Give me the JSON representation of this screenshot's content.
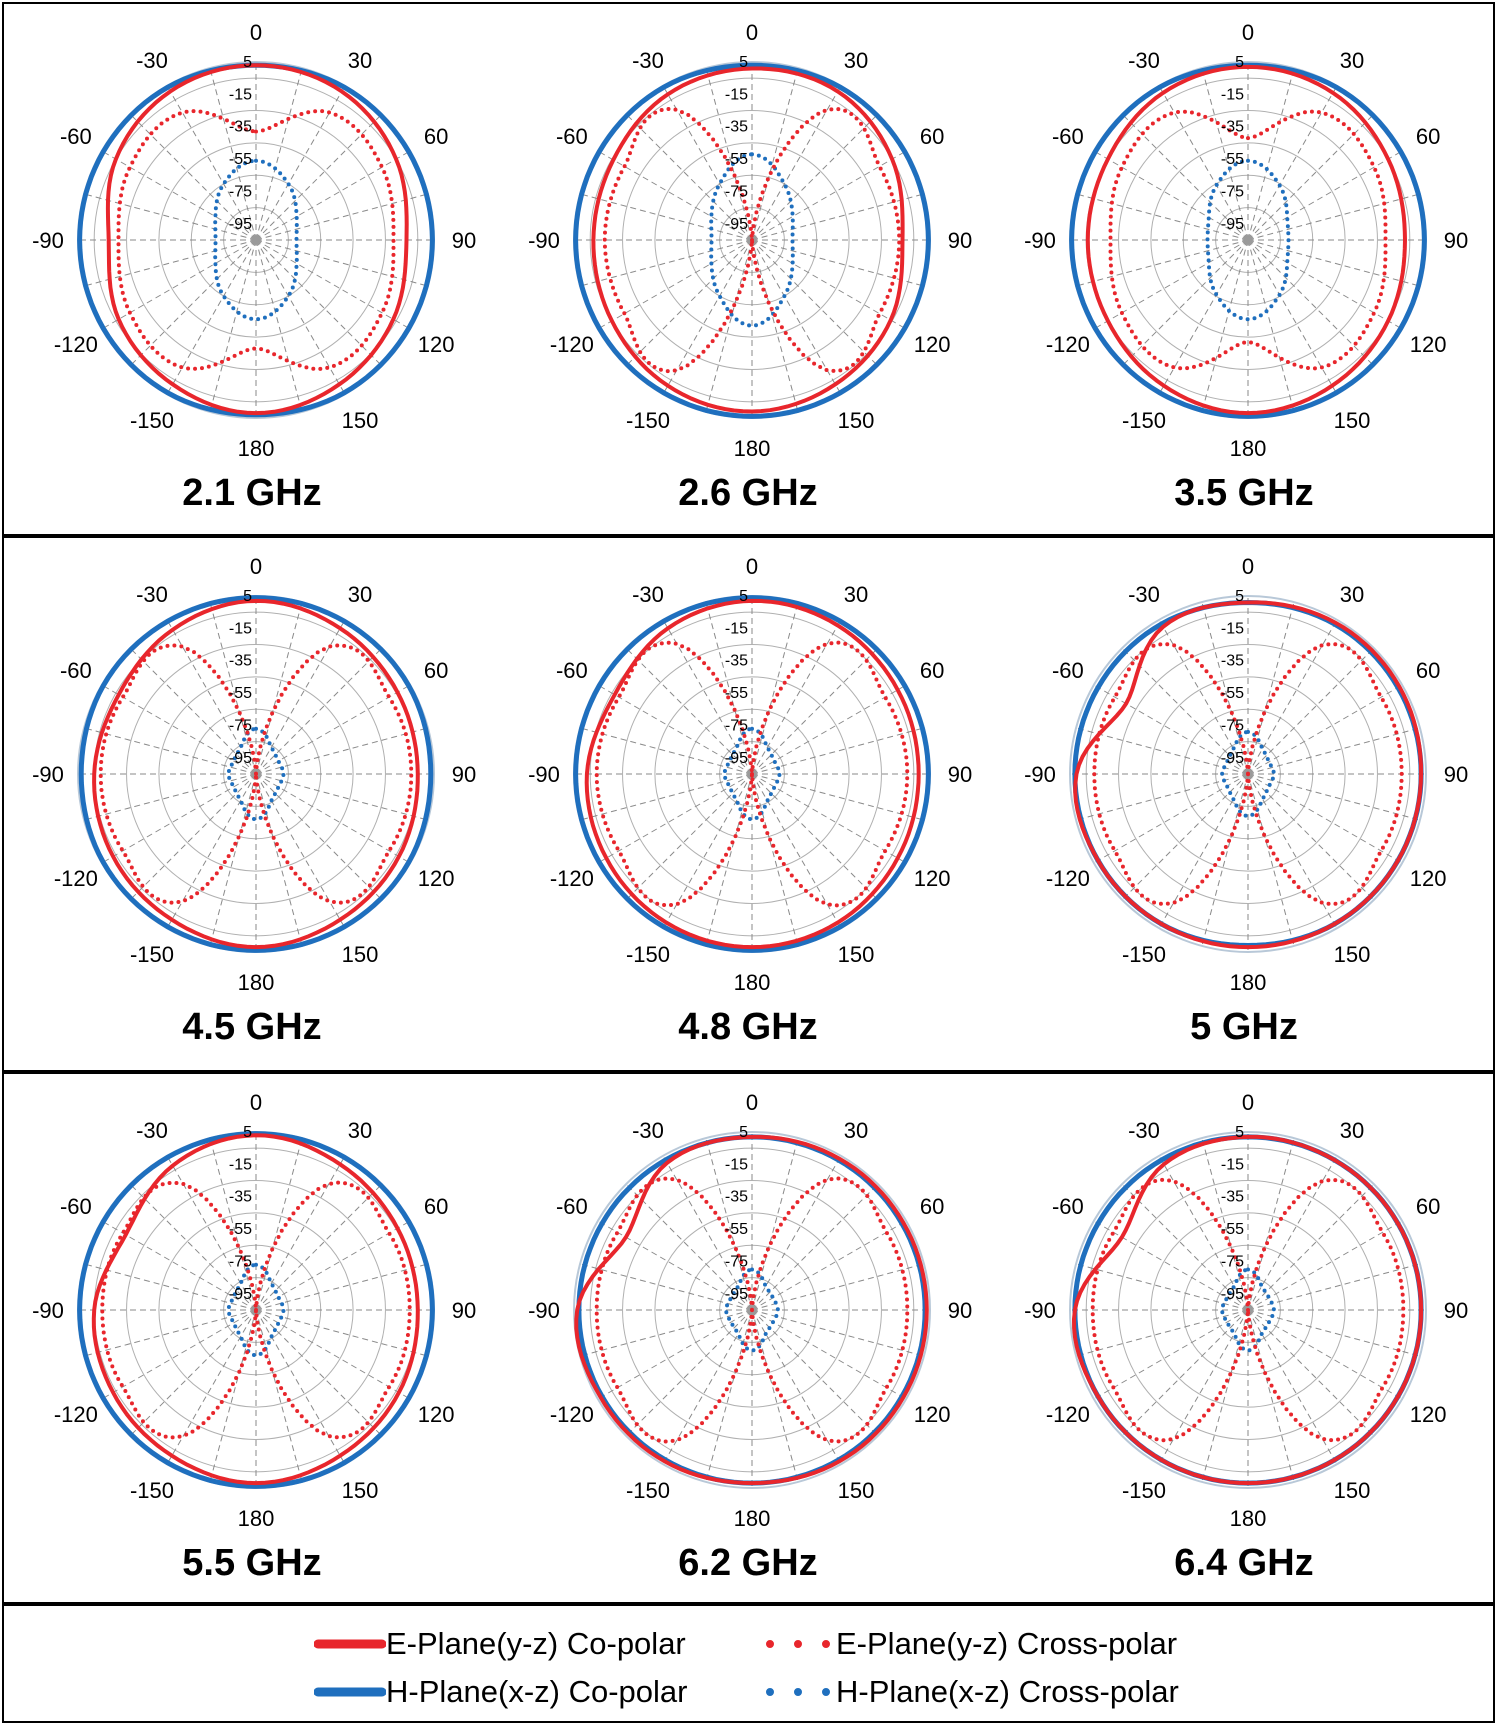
{
  "chart_data": {
    "type": "polar",
    "angle_tick_labels": [
      "0",
      "30",
      "60",
      "90",
      "120",
      "150",
      "180",
      "-150",
      "-120",
      "-90",
      "-60",
      "-30"
    ],
    "radial_tick_labels": [
      "5",
      "-15",
      "-35",
      "-55",
      "-75",
      "-95"
    ],
    "radial_range": [
      -105,
      5
    ],
    "grid": true,
    "legend_placement": "bottom",
    "colors": {
      "e_plane": "#e8262c",
      "h_plane": "#1f6fbe",
      "grid": "#9a9a9a",
      "outer_circle": "#b8c8d8"
    },
    "legend": [
      {
        "label": "E-Plane(y-z) Co-polar",
        "style": "solid",
        "color": "#e8262c"
      },
      {
        "label": "E-Plane(y-z) Cross-polar",
        "style": "dotted",
        "color": "#e8262c"
      },
      {
        "label": "H-Plane(x-z) Co-polar",
        "style": "solid",
        "color": "#1f6fbe"
      },
      {
        "label": "H-Plane(x-z) Cross-polar",
        "style": "dotted",
        "color": "#1f6fbe"
      }
    ],
    "panels": [
      {
        "frequency": "2.1 GHz",
        "angles_deg": [
          0,
          30,
          60,
          90,
          120,
          150,
          180,
          -150,
          -120,
          -90,
          -60,
          -30
        ],
        "e_co_db": [
          3,
          1,
          -5,
          -12,
          -7,
          -2,
          2,
          -2,
          -7,
          -14,
          -5,
          1
        ],
        "e_cross_db": [
          -38,
          -14,
          -15,
          -20,
          -15,
          -14,
          -38,
          -14,
          -15,
          -20,
          -15,
          -14
        ],
        "h_co_db": [
          3,
          4,
          4,
          4,
          4,
          4,
          3,
          4,
          4,
          4,
          4,
          4
        ],
        "h_cross_db": [
          -56,
          -65,
          -76,
          -80,
          -76,
          -65,
          -56,
          -65,
          -76,
          -80,
          -76,
          -65
        ]
      },
      {
        "frequency": "2.6 GHz",
        "angles_deg": [
          0,
          30,
          60,
          90,
          120,
          150,
          180,
          -150,
          -120,
          -90,
          -60,
          -30
        ],
        "e_co_db": [
          1,
          1,
          -5,
          -12,
          -6,
          -2,
          1,
          -1,
          -5,
          -7,
          -6,
          -1
        ],
        "e_cross_db": [
          -105,
          -12,
          -14,
          -14,
          -14,
          -12,
          -105,
          -12,
          -14,
          -14,
          -14,
          -12
        ],
        "h_co_db": [
          3,
          4,
          4,
          4,
          4,
          4,
          4,
          4,
          4,
          4,
          4,
          4
        ],
        "h_cross_db": [
          -52,
          -65,
          -76,
          -80,
          -76,
          -65,
          -52,
          -65,
          -76,
          -80,
          -76,
          -65
        ]
      },
      {
        "frequency": "3.5 GHz",
        "angles_deg": [
          0,
          30,
          60,
          90,
          120,
          150,
          180,
          -150,
          -120,
          -90,
          -60,
          -30
        ],
        "e_co_db": [
          2,
          0,
          -5,
          -8,
          -5,
          -1,
          2,
          -1,
          -5,
          -6,
          -5,
          0
        ],
        "e_cross_db": [
          -42,
          -14,
          -15,
          -20,
          -15,
          -14,
          -42,
          -14,
          -15,
          -20,
          -15,
          -14
        ],
        "h_co_db": [
          3,
          4,
          4,
          4,
          4,
          4,
          4,
          4,
          4,
          4,
          4,
          4
        ],
        "h_cross_db": [
          -56,
          -66,
          -77,
          -80,
          -77,
          -66,
          -56,
          -66,
          -77,
          -80,
          -77,
          -66
        ]
      },
      {
        "frequency": "4.5 GHz",
        "angles_deg": [
          0,
          30,
          60,
          90,
          120,
          150,
          180,
          -150,
          -120,
          -90,
          -60,
          -30
        ],
        "e_co_db": [
          2,
          -1,
          -4,
          -5,
          -3,
          -1,
          2,
          -1,
          -3,
          -5,
          -7,
          -2
        ],
        "e_cross_db": [
          -105,
          -14,
          -10,
          -9,
          -10,
          -14,
          -105,
          -14,
          -10,
          -9,
          -10,
          -14
        ],
        "h_co_db": [
          4,
          4,
          4,
          3,
          4,
          4,
          4,
          4,
          4,
          3,
          4,
          4
        ],
        "h_cross_db": [
          -77,
          -86,
          -89,
          -88,
          -89,
          -86,
          -77,
          -86,
          -89,
          -88,
          -89,
          -86
        ]
      },
      {
        "frequency": "4.8 GHz",
        "angles_deg": [
          0,
          30,
          60,
          90,
          120,
          150,
          180,
          -150,
          -120,
          -90,
          -60,
          -30
        ],
        "e_co_db": [
          2,
          1,
          -1,
          -2,
          -1,
          1,
          2,
          1,
          -1,
          -3,
          -7,
          -1
        ],
        "e_cross_db": [
          -105,
          -12,
          -10,
          -9,
          -10,
          -12,
          -105,
          -12,
          -10,
          -9,
          -10,
          -12
        ],
        "h_co_db": [
          4,
          4,
          4,
          4,
          4,
          4,
          4,
          4,
          4,
          4,
          4,
          4
        ],
        "h_cross_db": [
          -77,
          -86,
          -89,
          -88,
          -89,
          -86,
          -77,
          -86,
          -89,
          -88,
          -89,
          -86
        ]
      },
      {
        "frequency": "5 GHz",
        "angles_deg": [
          0,
          30,
          60,
          90,
          120,
          150,
          180,
          -150,
          -120,
          -90,
          -60,
          -30
        ],
        "e_co_db": [
          1,
          3,
          3,
          2,
          2,
          2,
          2,
          2,
          2,
          1,
          -18,
          0
        ],
        "e_cross_db": [
          -105,
          -13,
          -10,
          -10,
          -10,
          -13,
          -105,
          -13,
          -10,
          -10,
          -10,
          -13
        ],
        "h_co_db": [
          1,
          2,
          2,
          2,
          2,
          2,
          1,
          2,
          2,
          2,
          2,
          2
        ],
        "h_cross_db": [
          -79,
          -87,
          -90,
          -89,
          -90,
          -87,
          -79,
          -87,
          -90,
          -89,
          -90,
          -87
        ]
      },
      {
        "frequency": "5.5 GHz",
        "angles_deg": [
          0,
          30,
          60,
          90,
          120,
          150,
          180,
          -150,
          -120,
          -90,
          -60,
          -30
        ],
        "e_co_db": [
          3,
          -1,
          -4,
          -5,
          -3,
          -1,
          2,
          -1,
          -3,
          -5,
          -12,
          -2
        ],
        "e_cross_db": [
          -105,
          -15,
          -10,
          -10,
          -10,
          -15,
          -105,
          -15,
          -10,
          -10,
          -10,
          -15
        ],
        "h_co_db": [
          4,
          4,
          4,
          4,
          4,
          4,
          4,
          4,
          4,
          4,
          4,
          4
        ],
        "h_cross_db": [
          -77,
          -86,
          -89,
          -88,
          -89,
          -86,
          -77,
          -86,
          -89,
          -88,
          -89,
          -86
        ]
      },
      {
        "frequency": "6.2 GHz",
        "angles_deg": [
          0,
          30,
          60,
          90,
          120,
          150,
          180,
          -150,
          -120,
          -90,
          -60,
          -30
        ],
        "e_co_db": [
          2,
          3,
          3,
          3,
          3,
          3,
          2,
          3,
          3,
          3,
          -15,
          0
        ],
        "e_cross_db": [
          -105,
          -12,
          -9,
          -9,
          -9,
          -12,
          -105,
          -12,
          -9,
          -9,
          -9,
          -12
        ],
        "h_co_db": [
          2,
          2,
          2,
          2,
          2,
          2,
          2,
          2,
          2,
          2,
          2,
          2
        ],
        "h_cross_db": [
          -80,
          -88,
          -90,
          -89,
          -90,
          -88,
          -80,
          -88,
          -90,
          -89,
          -90,
          -88
        ]
      },
      {
        "frequency": "6.4 GHz",
        "angles_deg": [
          0,
          30,
          60,
          90,
          120,
          150,
          180,
          -150,
          -120,
          -90,
          -60,
          -30
        ],
        "e_co_db": [
          2,
          2,
          2,
          2,
          2,
          2,
          2,
          2,
          2,
          2,
          -15,
          -1
        ],
        "e_cross_db": [
          -105,
          -13,
          -9,
          -9,
          -9,
          -13,
          -105,
          -13,
          -9,
          -9,
          -9,
          -13
        ],
        "h_co_db": [
          2,
          2,
          2,
          2,
          2,
          2,
          2,
          2,
          2,
          2,
          2,
          2
        ],
        "h_cross_db": [
          -80,
          -88,
          -90,
          -89,
          -90,
          -88,
          -80,
          -88,
          -90,
          -89,
          -90,
          -88
        ]
      }
    ]
  }
}
